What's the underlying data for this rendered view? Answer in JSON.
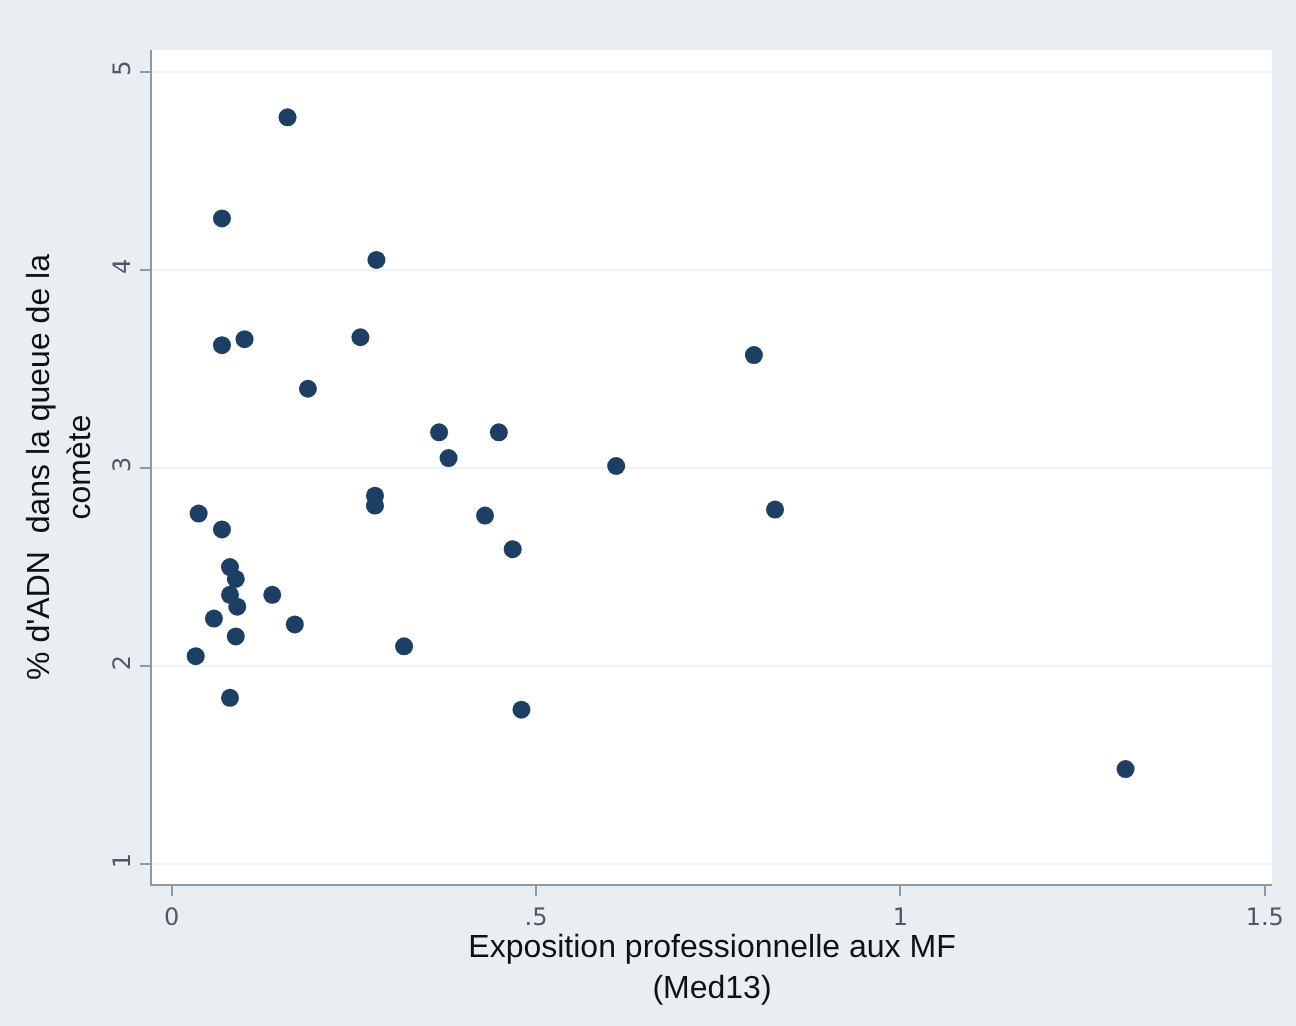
{
  "chart_data": {
    "type": "scatter",
    "xlabel": "Exposition professionnelle aux MF\n(Med13)",
    "ylabel": "% d'ADN  dans la queue de la\ncomète",
    "x": [
      0.159,
      0.069,
      0.281,
      0.069,
      0.1,
      0.259,
      0.187,
      0.367,
      0.449,
      0.38,
      0.61,
      0.279,
      0.279,
      0.037,
      0.43,
      0.069,
      0.468,
      0.08,
      0.088,
      0.08,
      0.09,
      0.138,
      0.058,
      0.169,
      0.088,
      0.319,
      0.033,
      0.08,
      0.48,
      0.799,
      0.828,
      1.309
    ],
    "values": [
      4.77,
      4.26,
      4.05,
      3.62,
      3.65,
      3.66,
      3.4,
      3.18,
      3.18,
      3.05,
      3.01,
      2.86,
      2.81,
      2.77,
      2.76,
      2.69,
      2.59,
      2.5,
      2.44,
      2.36,
      2.3,
      2.36,
      2.24,
      2.21,
      2.15,
      2.1,
      2.05,
      1.84,
      1.78,
      3.57,
      2.79,
      1.48
    ],
    "color": "#1c3f63",
    "marker": "circle",
    "xlim": [
      -0.027,
      1.51
    ],
    "xticks": [
      0,
      {
        "value": 0.5,
        "label": ".5"
      },
      1,
      1.5
    ],
    "ylim": [
      0.9,
      5.11
    ],
    "yticks": [
      1,
      2,
      3,
      4,
      5
    ],
    "grid": "y"
  }
}
